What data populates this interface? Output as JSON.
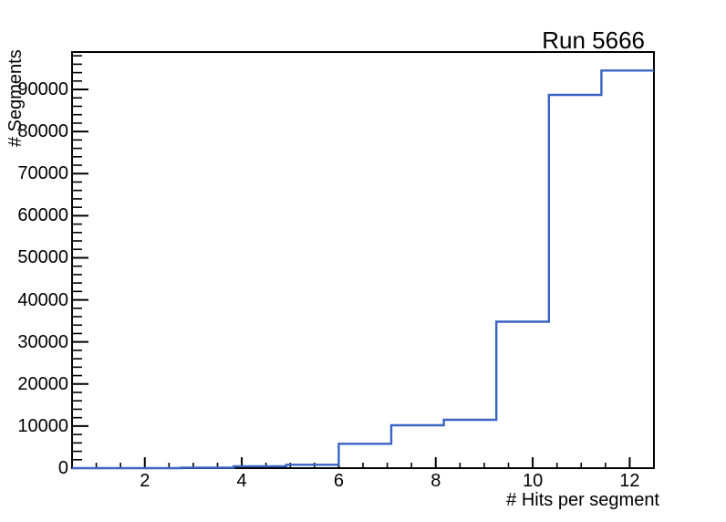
{
  "page": {
    "background_color": "#ffffff",
    "foreground_color": "#000000"
  },
  "chart_data": {
    "type": "line",
    "subtype": "step-histogram",
    "title": "Run 5666",
    "xlabel": "# Hits per segment",
    "ylabel": "# Segments",
    "line_color": "#3a64c3",
    "grid": false,
    "legend": null,
    "xlim": [
      0.5,
      12.5
    ],
    "ylim": [
      0,
      98900
    ],
    "bin_edges": [
      -0.5,
      0.5833,
      1.6667,
      2.75,
      3.8333,
      4.9167,
      6.0,
      7.0833,
      8.1667,
      9.25,
      10.3333,
      11.4167,
      12.5
    ],
    "values": [
      0,
      0,
      0,
      100,
      450,
      800,
      5800,
      10200,
      11500,
      34800,
      88700,
      94500
    ],
    "x_major_ticks": [
      2,
      4,
      6,
      8,
      10,
      12
    ],
    "x_tick_labels": [
      "2",
      "4",
      "6",
      "8",
      "10",
      "12"
    ],
    "x_minor_step": 0.5,
    "y_major_ticks": [
      0,
      10000,
      20000,
      30000,
      40000,
      50000,
      60000,
      70000,
      80000,
      90000
    ],
    "y_tick_labels": [
      "0",
      "10000",
      "20000",
      "30000",
      "40000",
      "50000",
      "60000",
      "70000",
      "80000",
      "90000"
    ],
    "y_minor_step": 2000
  }
}
